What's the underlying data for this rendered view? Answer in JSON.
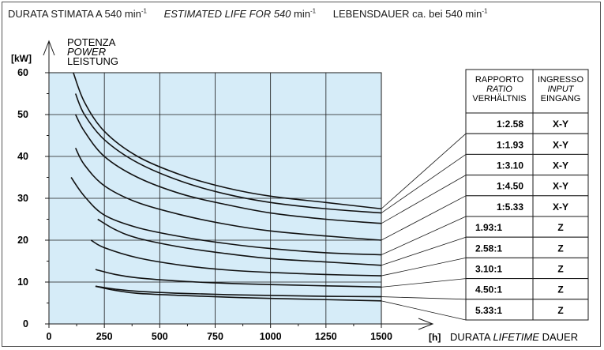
{
  "header": {
    "it_prefix": "DURATA STIMATA A 540 min",
    "it_exp": "-1",
    "en_prefix": "ESTIMATED LIFE FOR 540",
    "en_unit": " min",
    "en_exp": "-1",
    "de_prefix": "LEBENSDAUER ca. bei 540 min",
    "de_exp": "-1"
  },
  "y_axis": {
    "unit": "[kW]",
    "label_it": "POTENZA",
    "label_en": "POWER",
    "label_de": "LEISTUNG"
  },
  "x_axis": {
    "unit": "[h]",
    "label_it": "DURATA",
    "label_en": "LIFETIME",
    "label_de": "DAUER"
  },
  "table": {
    "header_ratio": [
      "RAPPORTO",
      "RATIO",
      "VERHÄLTNIS"
    ],
    "header_input": [
      "INGRESSO",
      "INPUT",
      "EINGANG"
    ],
    "rows": [
      {
        "ratio": "1:2.58",
        "input": "X-Y"
      },
      {
        "ratio": "1:1.93",
        "input": "X-Y"
      },
      {
        "ratio": "1:3.10",
        "input": "X-Y"
      },
      {
        "ratio": "1:4.50",
        "input": "X-Y"
      },
      {
        "ratio": "1:5.33",
        "input": "X-Y"
      },
      {
        "ratio": "1.93:1",
        "input": "Z"
      },
      {
        "ratio": "2.58:1",
        "input": "Z"
      },
      {
        "ratio": "3.10:1",
        "input": "Z"
      },
      {
        "ratio": "4.50:1",
        "input": "Z"
      },
      {
        "ratio": "5.33:1",
        "input": "Z"
      }
    ]
  },
  "chart_data": {
    "type": "line",
    "xlim": [
      0,
      1500
    ],
    "ylim": [
      0,
      60
    ],
    "x_ticks": [
      0,
      250,
      500,
      750,
      1000,
      1250,
      1500
    ],
    "y_ticks": [
      0,
      10,
      20,
      30,
      40,
      50,
      60
    ],
    "grid": true,
    "series": [
      {
        "name": "1:2.58",
        "x": [
          110,
          160,
          250,
          400,
          600,
          800,
          1000,
          1250,
          1500
        ],
        "y": [
          60,
          53,
          46,
          40,
          35.5,
          32.5,
          30.5,
          29,
          27.5
        ]
      },
      {
        "name": "1:1.93",
        "x": [
          120,
          160,
          250,
          400,
          600,
          800,
          1000,
          1250,
          1500
        ],
        "y": [
          55,
          50,
          44,
          38.5,
          34,
          31,
          29,
          27.5,
          26.5
        ]
      },
      {
        "name": "1:3.10",
        "x": [
          120,
          160,
          250,
          400,
          600,
          800,
          1000,
          1250,
          1500
        ],
        "y": [
          50,
          46,
          40,
          35,
          31,
          28.5,
          26.5,
          25,
          24
        ]
      },
      {
        "name": "1:4.50",
        "x": [
          120,
          160,
          250,
          400,
          600,
          800,
          1000,
          1250,
          1500
        ],
        "y": [
          42,
          38,
          33,
          29,
          26,
          23.8,
          22.2,
          21,
          20
        ]
      },
      {
        "name": "1:5.33",
        "x": [
          100,
          160,
          250,
          400,
          600,
          800,
          1000,
          1250,
          1500
        ],
        "y": [
          35,
          30.5,
          26,
          23,
          20.8,
          19.2,
          18,
          17,
          16.5
        ]
      },
      {
        "name": "1.93:1",
        "x": [
          220,
          300,
          400,
          600,
          800,
          1000,
          1250,
          1500
        ],
        "y": [
          25,
          22.5,
          20.5,
          18.3,
          16.8,
          15.6,
          14.8,
          14
        ]
      },
      {
        "name": "2.58:1",
        "x": [
          190,
          250,
          400,
          600,
          800,
          1000,
          1250,
          1500
        ],
        "y": [
          20,
          18.2,
          15.8,
          14,
          12.9,
          12.3,
          11.8,
          11.5
        ]
      },
      {
        "name": "3.10:1",
        "x": [
          210,
          300,
          400,
          600,
          800,
          1000,
          1250,
          1500
        ],
        "y": [
          13,
          11.8,
          11,
          10.2,
          9.7,
          9.4,
          9.1,
          8.8
        ]
      },
      {
        "name": "4.50:1",
        "x": [
          210,
          300,
          400,
          600,
          800,
          1000,
          1250,
          1500
        ],
        "y": [
          9,
          8.3,
          7.8,
          7.3,
          7,
          6.8,
          6.6,
          6.5
        ]
      },
      {
        "name": "5.33:1",
        "x": [
          210,
          300,
          400,
          600,
          800,
          1000,
          1250,
          1500
        ],
        "y": [
          9,
          8,
          7.3,
          6.8,
          6.4,
          6.1,
          5.8,
          5.5
        ]
      }
    ],
    "leader_targets": [
      27.5,
      26.5,
      24,
      20,
      16.5,
      14,
      11.5,
      8.8,
      6.5,
      5.5
    ]
  },
  "colors": {
    "plot_bg": "#d6ecf8",
    "grid": "#1a1a1a",
    "curve": "#111111"
  }
}
